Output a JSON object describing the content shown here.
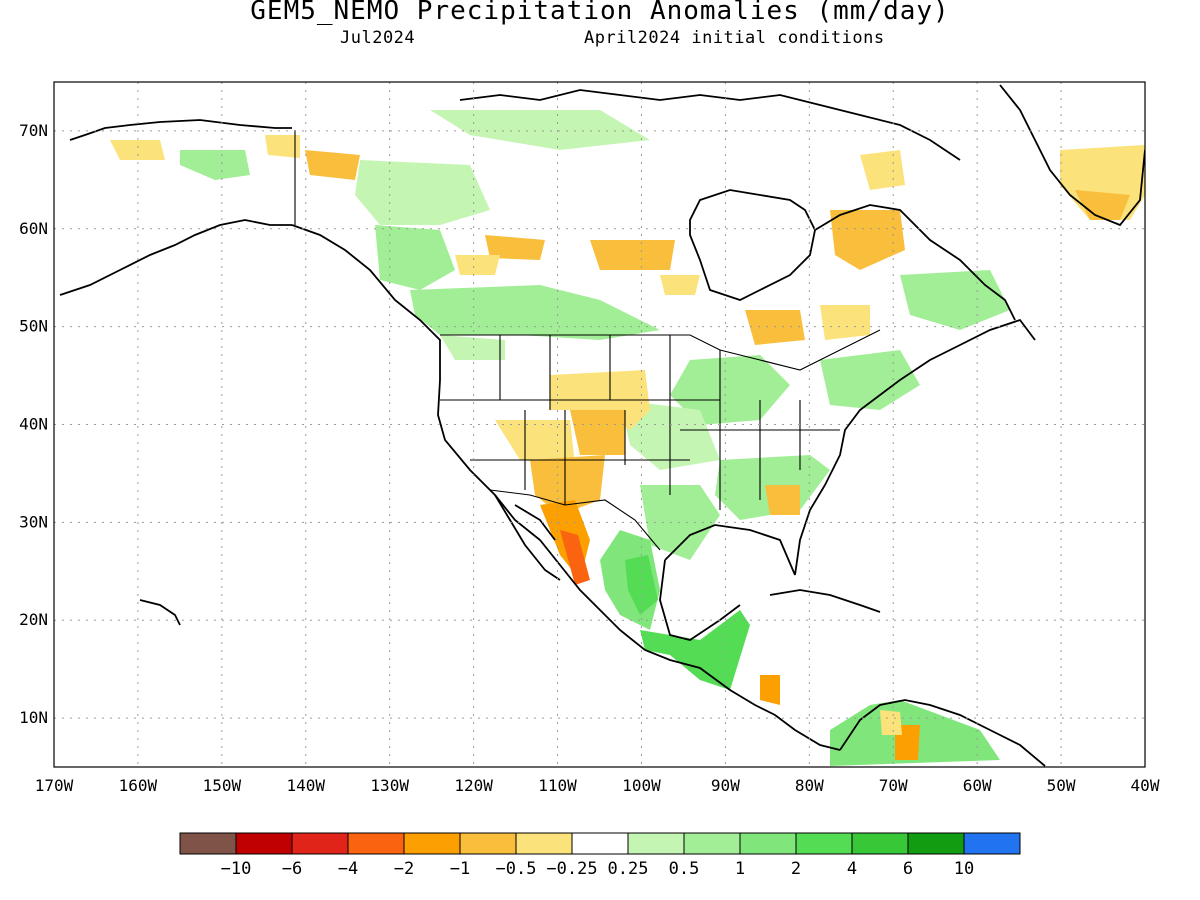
{
  "title": "GEM5_NEMO Precipitation Anomalies (mm/day)",
  "subtitle_left": "Jul2024",
  "subtitle_right": "April2024 initial conditions",
  "map": {
    "lon_range": [
      -170,
      -40
    ],
    "lat_range": [
      5,
      75
    ],
    "grid": true,
    "lat_ticks": [
      {
        "value": 70,
        "label": "70N"
      },
      {
        "value": 60,
        "label": "60N"
      },
      {
        "value": 50,
        "label": "50N"
      },
      {
        "value": 40,
        "label": "40N"
      },
      {
        "value": 30,
        "label": "30N"
      },
      {
        "value": 20,
        "label": "20N"
      },
      {
        "value": 10,
        "label": "10N"
      }
    ],
    "lon_ticks": [
      {
        "value": -170,
        "label": "170W"
      },
      {
        "value": -160,
        "label": "160W"
      },
      {
        "value": -150,
        "label": "150W"
      },
      {
        "value": -140,
        "label": "140W"
      },
      {
        "value": -130,
        "label": "130W"
      },
      {
        "value": -120,
        "label": "120W"
      },
      {
        "value": -110,
        "label": "110W"
      },
      {
        "value": -100,
        "label": "100W"
      },
      {
        "value": -90,
        "label": "90W"
      },
      {
        "value": -80,
        "label": "80W"
      },
      {
        "value": -70,
        "label": "70W"
      },
      {
        "value": -60,
        "label": "60W"
      },
      {
        "value": -50,
        "label": "50W"
      },
      {
        "value": -40,
        "label": "40W"
      }
    ]
  },
  "colorbar": {
    "colors": [
      "#7f5347",
      "#c00000",
      "#e0241a",
      "#fa6410",
      "#fba000",
      "#f8be3c",
      "#fce27a",
      "#ffffff",
      "#c5f5b3",
      "#a2ee96",
      "#80e67b",
      "#55dc55",
      "#37c737",
      "#129c12",
      "#2173f0"
    ],
    "labels": [
      "−10",
      "−6",
      "−4",
      "−2",
      "−1",
      "−0.5",
      "−0.25",
      "0.25",
      "0.5",
      "1",
      "2",
      "4",
      "6",
      "10"
    ]
  }
}
